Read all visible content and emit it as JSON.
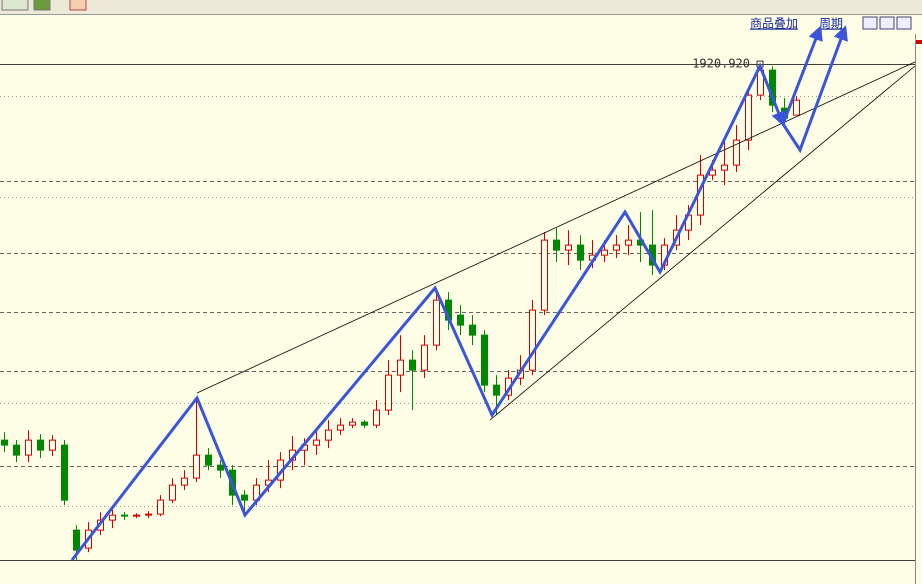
{
  "toolbar": {
    "overlay": "商品叠加",
    "period": "周期"
  },
  "chart_data": {
    "type": "candlestick",
    "ylim": [
      1513,
      1961
    ],
    "up_color": "#d40000",
    "down_color": "#008800",
    "max_label": {
      "value": 1920.92,
      "label": "1920.920"
    },
    "levels": [
      {
        "value": 1920.92,
        "style": "solid"
      },
      {
        "value": 1895.3,
        "style": "dotted"
      },
      {
        "value": 1827.3,
        "style": "dashed"
      },
      {
        "value": 1814.5,
        "style": "dotted"
      },
      {
        "value": 1769.7,
        "style": "dashed"
      },
      {
        "value": 1722.5,
        "style": "dashed"
      },
      {
        "value": 1675.3,
        "style": "dashed"
      },
      {
        "value": 1649.7,
        "style": "dotted"
      },
      {
        "value": 1599.3,
        "style": "dashed"
      },
      {
        "value": 1567.3,
        "style": "dotted"
      },
      {
        "value": 1524.1,
        "style": "solid"
      }
    ],
    "candles": [
      [
        1620.1,
        1626.5,
        1610.5,
        1616.1
      ],
      [
        1616.1,
        1620.1,
        1602.5,
        1608.1
      ],
      [
        1608.1,
        1628.1,
        1602.5,
        1620.1
      ],
      [
        1620.1,
        1624.9,
        1605.7,
        1612.1
      ],
      [
        1612.1,
        1624.1,
        1607.3,
        1620.1
      ],
      [
        1616.1,
        1620.1,
        1568.1,
        1572.1
      ],
      [
        1548.1,
        1552.1,
        1524.1,
        1532.1
      ],
      [
        1533.7,
        1554.5,
        1530.5,
        1548.1
      ],
      [
        1548.1,
        1562.5,
        1544.1,
        1556.1
      ],
      [
        1556.1,
        1565.7,
        1549.7,
        1560.1
      ],
      [
        1560.1,
        1562.5,
        1556.1,
        1559.3
      ],
      [
        1559.3,
        1561.7,
        1557.7,
        1560.1
      ],
      [
        1560.1,
        1563.3,
        1557.7,
        1560.9
      ],
      [
        1560.9,
        1576.1,
        1559.3,
        1572.1
      ],
      [
        1572.1,
        1589.7,
        1569.7,
        1584.1
      ],
      [
        1584.1,
        1596.1,
        1580.1,
        1589.7
      ],
      [
        1589.7,
        1652.1,
        1586.5,
        1608.1
      ],
      [
        1608.1,
        1613.7,
        1596.1,
        1600.1
      ],
      [
        1600.1,
        1604.1,
        1589.7,
        1596.1
      ],
      [
        1596.1,
        1600.1,
        1568.1,
        1576.1
      ],
      [
        1576.1,
        1580.1,
        1560.1,
        1572.1
      ],
      [
        1572.1,
        1589.7,
        1568.1,
        1584.1
      ],
      [
        1584.1,
        1604.1,
        1578.5,
        1588.1
      ],
      [
        1588.1,
        1610.5,
        1581.7,
        1604.1
      ],
      [
        1604.1,
        1623.3,
        1596.1,
        1612.1
      ],
      [
        1612.1,
        1621.7,
        1600.1,
        1616.1
      ],
      [
        1616.1,
        1628.1,
        1608.1,
        1620.1
      ],
      [
        1620.1,
        1636.1,
        1613.7,
        1628.1
      ],
      [
        1628.1,
        1637.7,
        1624.1,
        1632.1
      ],
      [
        1632.1,
        1637.7,
        1629.7,
        1634.5
      ],
      [
        1634.5,
        1636.1,
        1629.7,
        1632.1
      ],
      [
        1632.1,
        1652.1,
        1629.7,
        1644.1
      ],
      [
        1644.1,
        1684.1,
        1640.1,
        1672.1
      ],
      [
        1672.1,
        1704.1,
        1658.5,
        1684.1
      ],
      [
        1684.1,
        1692.1,
        1644.1,
        1676.1
      ],
      [
        1676.1,
        1704.1,
        1669.7,
        1696.1
      ],
      [
        1696.1,
        1741.7,
        1692.1,
        1732.1
      ],
      [
        1732.1,
        1738.5,
        1708.1,
        1716.1
      ],
      [
        1720.1,
        1728.1,
        1704.1,
        1712.1
      ],
      [
        1712.1,
        1720.1,
        1696.1,
        1704.1
      ],
      [
        1704.1,
        1708.1,
        1658.5,
        1664.1
      ],
      [
        1664.1,
        1672.1,
        1640.1,
        1656.1
      ],
      [
        1656.1,
        1676.1,
        1652.1,
        1669.7
      ],
      [
        1669.7,
        1688.1,
        1664.1,
        1676.1
      ],
      [
        1676.1,
        1732.1,
        1672.1,
        1724.1
      ],
      [
        1724.1,
        1786.5,
        1720.1,
        1780.1
      ],
      [
        1780.1,
        1789.7,
        1762.5,
        1772.1
      ],
      [
        1772.1,
        1788.1,
        1760.1,
        1776.1
      ],
      [
        1776.1,
        1784.1,
        1756.1,
        1764.1
      ],
      [
        1764.1,
        1780.1,
        1757.7,
        1768.1
      ],
      [
        1768.1,
        1780.1,
        1762.5,
        1772.1
      ],
      [
        1772.1,
        1784.1,
        1765.7,
        1776.1
      ],
      [
        1776.1,
        1792.1,
        1768.1,
        1780.1
      ],
      [
        1780.1,
        1802.5,
        1762.5,
        1776.1
      ],
      [
        1776.1,
        1804.1,
        1752.1,
        1760.1
      ],
      [
        1760.1,
        1781.7,
        1756.1,
        1776.1
      ],
      [
        1776.1,
        1800.1,
        1772.1,
        1788.1
      ],
      [
        1788.1,
        1808.1,
        1780.1,
        1800.1
      ],
      [
        1800.1,
        1848.1,
        1792.1,
        1832.1
      ],
      [
        1832.1,
        1844.1,
        1828.1,
        1836.1
      ],
      [
        1836.1,
        1860.1,
        1824.1,
        1840.1
      ],
      [
        1840.1,
        1872.1,
        1834.5,
        1860.1
      ],
      [
        1860.1,
        1901.7,
        1852.1,
        1896.1
      ],
      [
        1896.1,
        1920.92,
        1892.1,
        1916.1
      ],
      [
        1916.1,
        1919.3,
        1882.5,
        1888.1
      ],
      [
        1885.7,
        1893.7,
        1871.7,
        1877.7
      ],
      [
        1880.1,
        1895.3,
        1882.5,
        1892.1
      ]
    ]
  }
}
